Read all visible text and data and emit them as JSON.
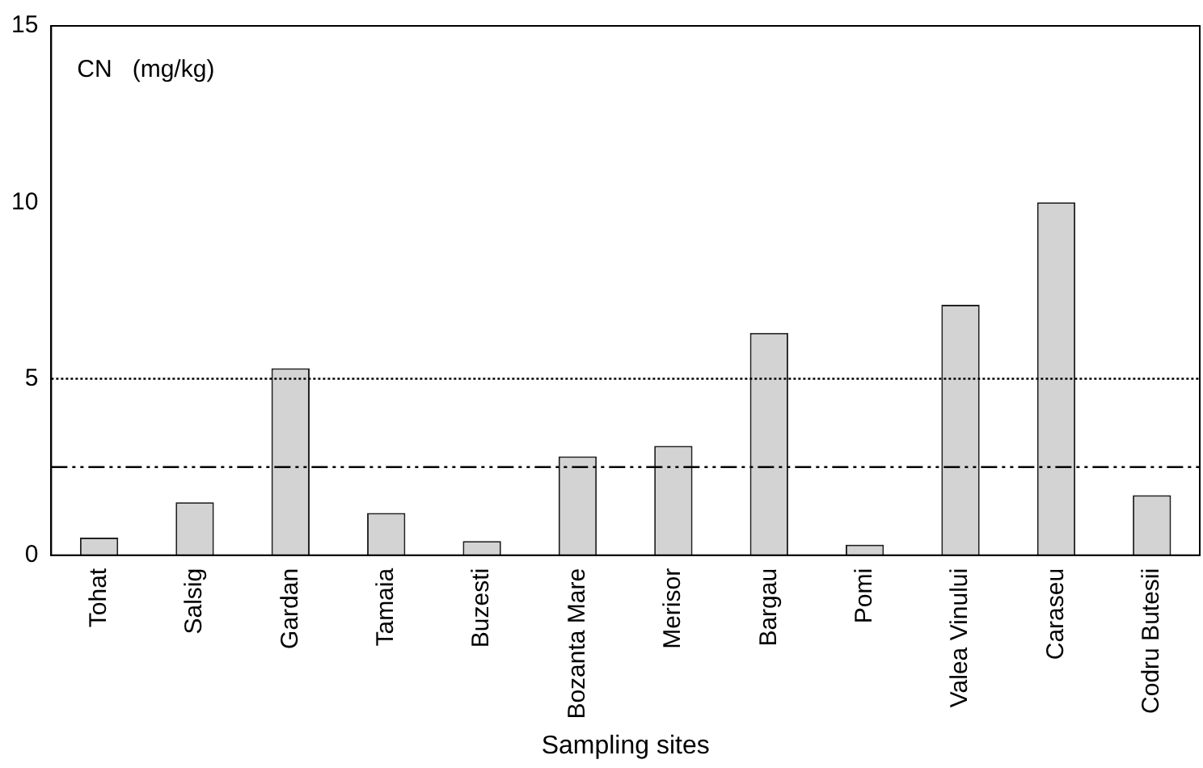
{
  "chart_data": {
    "type": "bar",
    "xlabel": "Sampling sites",
    "categories": [
      "Tohat",
      "Salsig",
      "Gardan",
      "Tamaia",
      "Buzesti",
      "Bozanta Mare",
      "Merisor",
      "Bargau",
      "Pomi",
      "Valea Vinului",
      "Caraseu",
      "Codru Butesii"
    ],
    "values": [
      0.5,
      1.5,
      5.3,
      1.2,
      0.4,
      2.8,
      3.1,
      6.3,
      0.3,
      7.1,
      10,
      1.7
    ],
    "color": "#d3d3d3",
    "ylim": [
      0,
      15
    ],
    "yticks": [
      0,
      5,
      10,
      15
    ],
    "grid": false,
    "legend": false,
    "ref_lines": [
      {
        "axis": "y",
        "value": 5,
        "line_style": "dotted"
      },
      {
        "axis": "y",
        "value": 2.5,
        "line_style": "dashed"
      }
    ],
    "annotations": [
      "CN   (mg/kg)"
    ]
  }
}
